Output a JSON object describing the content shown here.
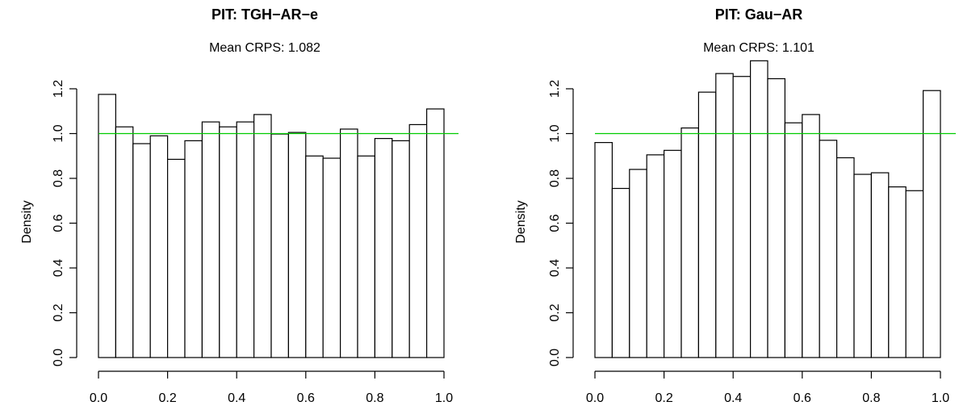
{
  "chart_data": [
    {
      "type": "bar",
      "title": "PIT: TGH−AR−e",
      "subtitle": "Mean CRPS: 1.082",
      "xlabel": "",
      "ylabel": "Density",
      "xlim": [
        0,
        1
      ],
      "ylim": [
        0,
        1.2
      ],
      "xticks": [
        "0.0",
        "0.2",
        "0.4",
        "0.6",
        "0.8",
        "1.0"
      ],
      "yticks": [
        "0.0",
        "0.2",
        "0.4",
        "0.6",
        "0.8",
        "1.0",
        "1.2"
      ],
      "bin_width": 0.05,
      "values": [
        1.175,
        1.03,
        0.955,
        0.99,
        0.885,
        0.968,
        1.052,
        1.03,
        1.052,
        1.085,
        0.998,
        1.005,
        0.9,
        0.89,
        1.02,
        0.9,
        0.978,
        0.968,
        1.04,
        1.11
      ],
      "reference_line": 1.0,
      "reference_color": "#00cc00",
      "bar_fill": "#ffffff",
      "bar_stroke": "#000000",
      "grid": false
    },
    {
      "type": "bar",
      "title": "PIT: Gau−AR",
      "subtitle": "Mean CRPS: 1.101",
      "xlabel": "",
      "ylabel": "Density",
      "xlim": [
        0,
        1
      ],
      "ylim": [
        0,
        1.2
      ],
      "xticks": [
        "0.0",
        "0.2",
        "0.4",
        "0.6",
        "0.8",
        "1.0"
      ],
      "yticks": [
        "0.0",
        "0.2",
        "0.4",
        "0.6",
        "0.8",
        "1.0",
        "1.2"
      ],
      "bin_width": 0.05,
      "values": [
        0.96,
        0.755,
        0.84,
        0.905,
        0.925,
        1.025,
        1.185,
        1.268,
        1.255,
        1.325,
        1.245,
        1.048,
        1.085,
        0.97,
        0.892,
        0.818,
        0.825,
        0.762,
        0.745,
        1.192
      ],
      "reference_line": 1.0,
      "reference_color": "#00cc00",
      "bar_fill": "#ffffff",
      "bar_stroke": "#000000",
      "grid": false
    }
  ]
}
